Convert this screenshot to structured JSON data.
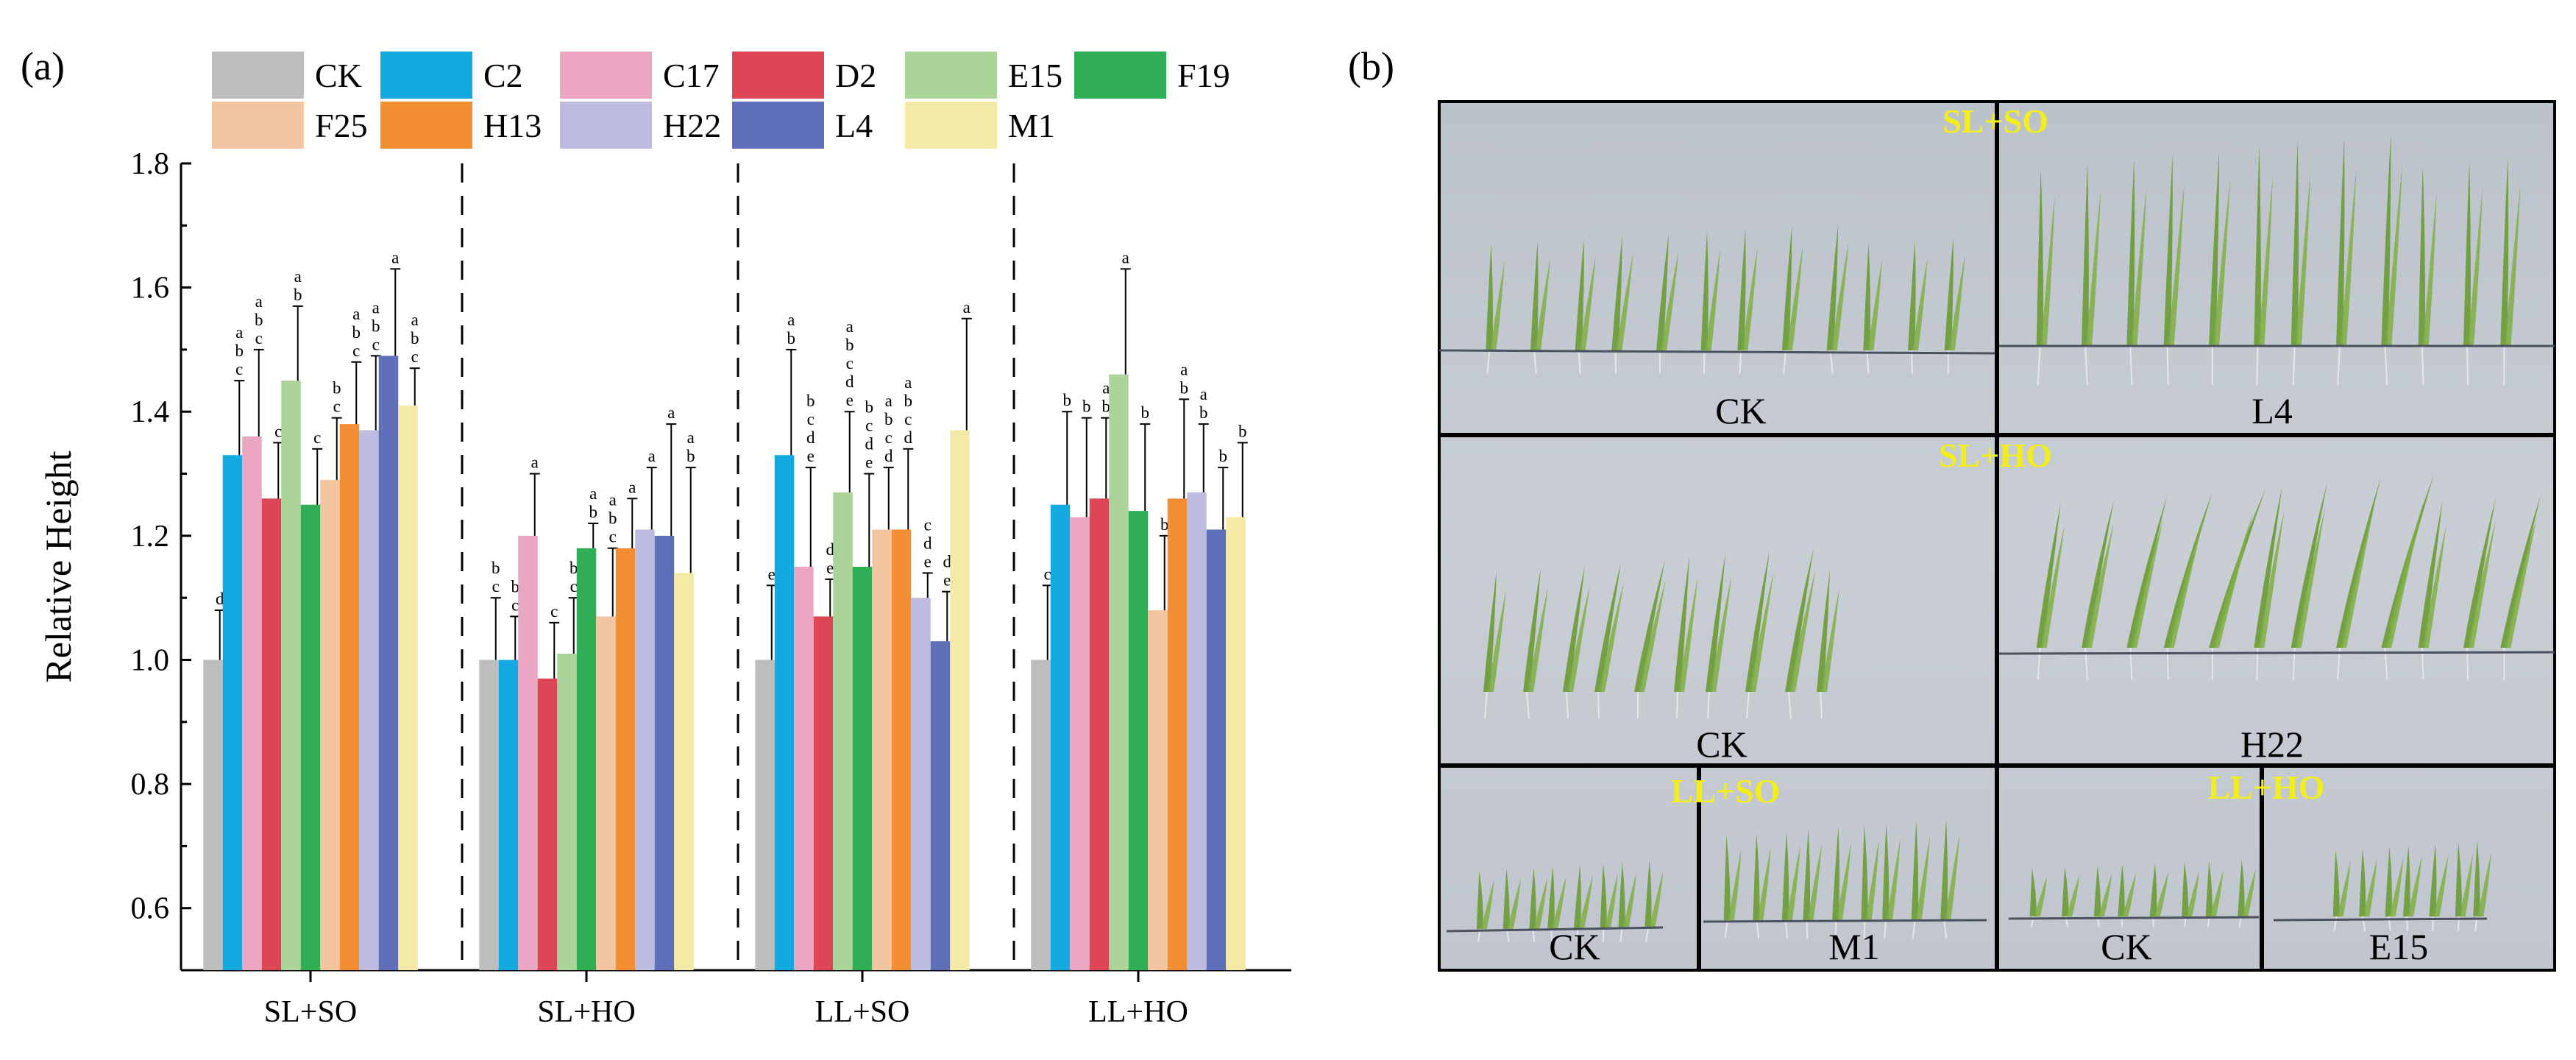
{
  "panel_a_label": "(a)",
  "panel_b_label": "(b)",
  "chart_data": {
    "type": "bar",
    "xlabel": "",
    "ylabel": "Relative Height",
    "ylim": [
      0.5,
      1.8
    ],
    "yticks": [
      "0.6",
      "0.8",
      "1.0",
      "1.2",
      "1.4",
      "1.6",
      "1.8"
    ],
    "grid": false,
    "legend_position": "top",
    "categories": [
      "SL+SO",
      "SL+HO",
      "LL+SO",
      "LL+HO"
    ],
    "series": [
      {
        "name": "CK",
        "color": "#bdbdbd",
        "values": [
          1.0,
          1.0,
          1.0,
          1.0
        ],
        "errors": [
          0.08,
          0.1,
          0.12,
          0.12
        ],
        "letters": [
          "d",
          "bc",
          "e",
          "c"
        ]
      },
      {
        "name": "C2",
        "color": "#14a9e1",
        "values": [
          1.33,
          1.0,
          1.33,
          1.25
        ],
        "errors": [
          0.12,
          0.07,
          0.17,
          0.15
        ],
        "letters": [
          "abc",
          "bc",
          "ab",
          "b"
        ]
      },
      {
        "name": "C17",
        "color": "#eba6c3",
        "values": [
          1.36,
          1.2,
          1.15,
          1.23
        ],
        "errors": [
          0.14,
          0.1,
          0.16,
          0.16
        ],
        "letters": [
          "abc",
          "a",
          "bcde",
          "b"
        ]
      },
      {
        "name": "D2",
        "color": "#dc4656",
        "values": [
          1.26,
          0.97,
          1.07,
          1.26
        ],
        "errors": [
          0.09,
          0.09,
          0.06,
          0.13
        ],
        "letters": [
          "c",
          "c",
          "de",
          "ab"
        ]
      },
      {
        "name": "E15",
        "color": "#acd39a",
        "values": [
          1.45,
          1.01,
          1.27,
          1.46
        ],
        "errors": [
          0.12,
          0.09,
          0.13,
          0.17
        ],
        "letters": [
          "ab",
          "bc",
          "abcde",
          "a"
        ]
      },
      {
        "name": "F19",
        "color": "#2fae56",
        "values": [
          1.25,
          1.18,
          1.15,
          1.24
        ],
        "errors": [
          0.09,
          0.04,
          0.15,
          0.14
        ],
        "letters": [
          "c",
          "ab",
          "bcde",
          "b"
        ]
      },
      {
        "name": "F25",
        "color": "#f3c5a0",
        "values": [
          1.29,
          1.07,
          1.21,
          1.08
        ],
        "errors": [
          0.1,
          0.11,
          0.1,
          0.12
        ],
        "letters": [
          "bc",
          "abc",
          "abcd",
          "b"
        ]
      },
      {
        "name": "H13",
        "color": "#f28f35",
        "values": [
          1.38,
          1.18,
          1.21,
          1.26
        ],
        "errors": [
          0.1,
          0.08,
          0.13,
          0.16
        ],
        "letters": [
          "abc",
          "a",
          "abcd",
          "ab"
        ]
      },
      {
        "name": "H22",
        "color": "#bdbce0",
        "values": [
          1.37,
          1.21,
          1.1,
          1.27
        ],
        "errors": [
          0.12,
          0.1,
          0.04,
          0.11
        ],
        "letters": [
          "abc",
          "a",
          "cde",
          "ab"
        ]
      },
      {
        "name": "L4",
        "color": "#5e6fb7",
        "values": [
          1.49,
          1.2,
          1.03,
          1.21
        ],
        "errors": [
          0.14,
          0.18,
          0.08,
          0.1
        ],
        "letters": [
          "a",
          "a",
          "de",
          "b"
        ]
      },
      {
        "name": "M1",
        "color": "#f5eaa5",
        "values": [
          1.41,
          1.14,
          1.37,
          1.23
        ],
        "errors": [
          0.06,
          0.17,
          0.18,
          0.12
        ],
        "letters": [
          "abc",
          "ab",
          "a",
          "b"
        ]
      }
    ]
  },
  "photos": {
    "conditions": [
      "SL+SO",
      "SL+HO",
      "LL+SO",
      "LL+HO"
    ],
    "labels": [
      "CK",
      "L4",
      "CK",
      "H22",
      "CK",
      "M1",
      "CK",
      "E15"
    ]
  },
  "colors": {
    "photo_background": "#c6cbd2",
    "condition_text": "#f2ee1d",
    "seedling_green": "#6a9a35"
  }
}
